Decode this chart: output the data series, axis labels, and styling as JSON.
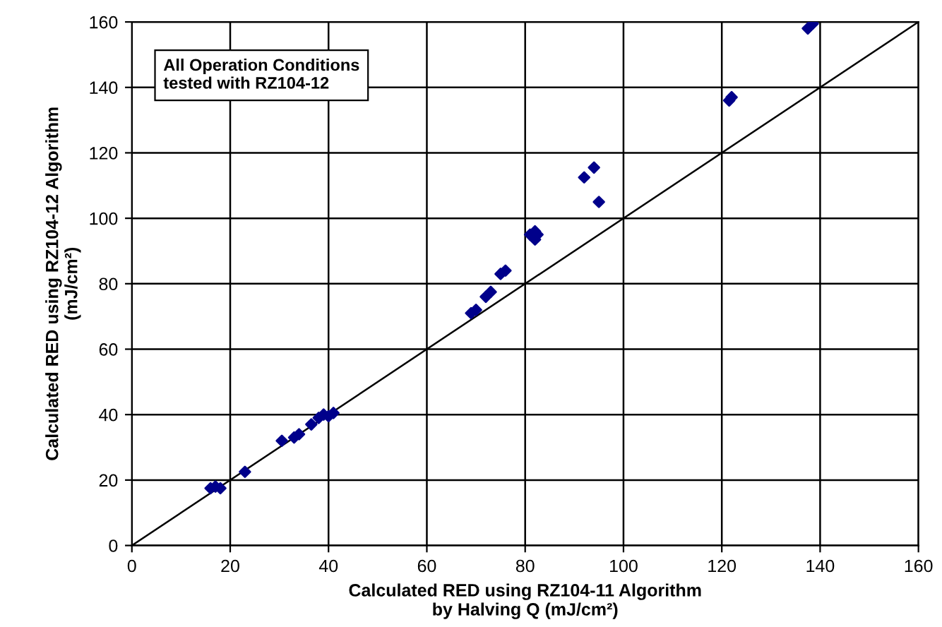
{
  "chart_data": {
    "type": "scatter",
    "xlabel": "Calculated RED using RZ104-11 Algorithm\nby Halving Q (mJ/cm²)",
    "ylabel": "Calculated RED using RZ104-12 Algorithm\n(mJ/cm²)",
    "annotations": [
      "All Operation Conditions\ntested with RZ104-12"
    ],
    "xlim": [
      0,
      160
    ],
    "ylim": [
      0,
      160
    ],
    "xticks": [
      0,
      20,
      40,
      60,
      80,
      100,
      120,
      140,
      160
    ],
    "yticks": [
      0,
      20,
      40,
      60,
      80,
      100,
      120,
      140,
      160
    ],
    "grid": true,
    "marker": "diamond",
    "series": [
      {
        "color": "#00008b",
        "x": [
          16,
          17,
          18,
          23,
          30.5,
          33,
          34,
          36.5,
          38,
          39,
          40,
          41,
          69,
          70,
          72,
          73,
          75,
          76,
          81,
          82,
          82,
          82.5,
          92,
          94,
          95,
          121.5,
          122,
          137.5,
          138.5
        ],
        "values": [
          17.5,
          18,
          17.5,
          22.5,
          32,
          33,
          34,
          37,
          39,
          40,
          39.5,
          40.5,
          71,
          72,
          76,
          77.5,
          83,
          84,
          95,
          96,
          93.5,
          95,
          112.5,
          115.5,
          105,
          136,
          137,
          158,
          159.5
        ]
      },
      {
        "type": "line",
        "color": "#000000",
        "x": [
          0,
          160
        ],
        "values": [
          0,
          160
        ],
        "marker": "none"
      }
    ]
  }
}
